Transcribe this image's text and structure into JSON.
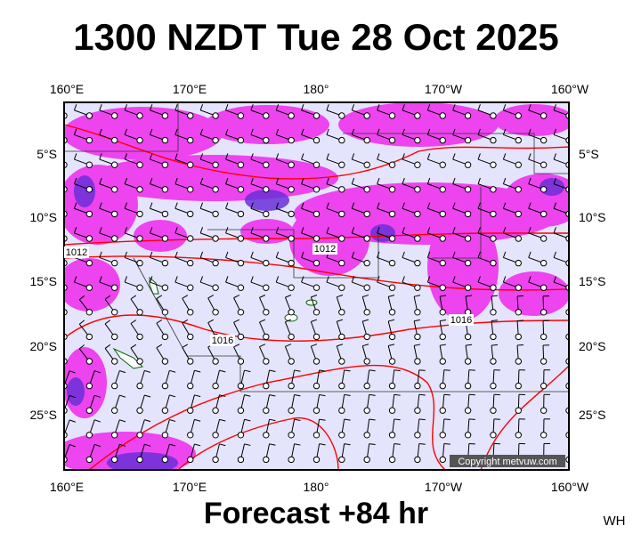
{
  "header": {
    "title": "1300 NZDT Tue 28 Oct 2025"
  },
  "map": {
    "lon_labels": [
      "160°E",
      "170°E",
      "180°",
      "170°W",
      "160°W"
    ],
    "lat_labels": [
      "5°S",
      "10°S",
      "15°S",
      "20°S",
      "25°S"
    ],
    "isobar_labels": [
      "1012",
      "1012",
      "1016",
      "1016"
    ],
    "copyright": "Copyright metvuw.com"
  },
  "footer": {
    "caption": "Forecast +84 hr",
    "credit": "WH"
  }
}
